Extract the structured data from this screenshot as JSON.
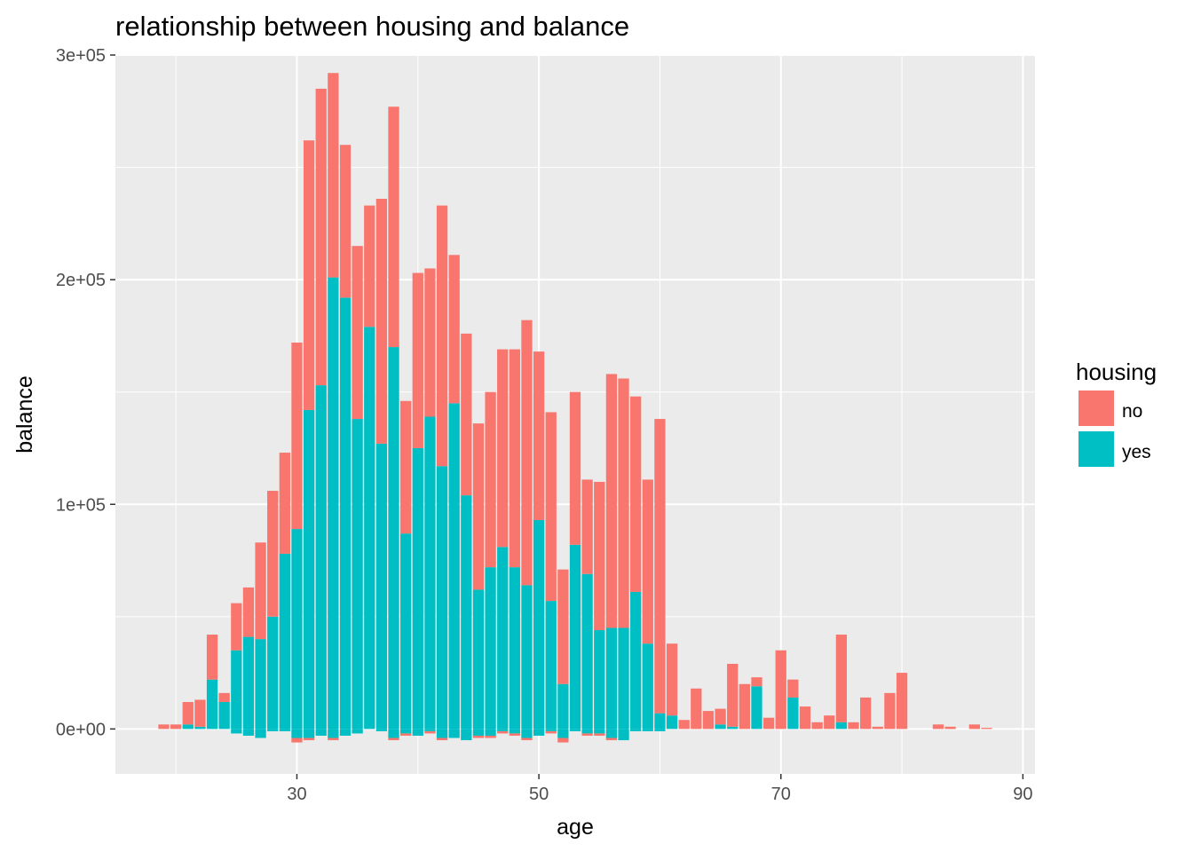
{
  "chart_data": {
    "type": "bar",
    "stacked": true,
    "title": "relationship between housing and balance",
    "xlabel": "age",
    "ylabel": "balance",
    "xlim": [
      15,
      91
    ],
    "ylim": [
      -20000,
      300000
    ],
    "x_ticks": [
      30,
      50,
      70,
      90
    ],
    "x_tick_labels": [
      "30",
      "50",
      "70",
      "90"
    ],
    "y_ticks": [
      0,
      100000,
      200000,
      300000
    ],
    "y_tick_labels": [
      "0e+00",
      "1e+05",
      "2e+05",
      "3e+05"
    ],
    "grid": true,
    "legend": {
      "title": "housing",
      "position": "right",
      "entries": [
        {
          "label": "no",
          "color": "#F8766D"
        },
        {
          "label": "yes",
          "color": "#00BFC4"
        }
      ]
    },
    "x": [
      19,
      20,
      21,
      22,
      23,
      24,
      25,
      26,
      27,
      28,
      29,
      30,
      31,
      32,
      33,
      34,
      35,
      36,
      37,
      38,
      39,
      40,
      41,
      42,
      43,
      44,
      45,
      46,
      47,
      48,
      49,
      50,
      51,
      52,
      53,
      54,
      55,
      56,
      57,
      58,
      59,
      60,
      61,
      62,
      63,
      64,
      65,
      66,
      67,
      68,
      69,
      70,
      71,
      72,
      73,
      74,
      75,
      76,
      77,
      78,
      79,
      80,
      81,
      83,
      84,
      86,
      87
    ],
    "series": [
      {
        "name": "yes",
        "color": "#00BFC4",
        "values": [
          0,
          0,
          2000,
          1000,
          22000,
          12000,
          35000,
          41000,
          40000,
          50000,
          78000,
          89000,
          142000,
          153000,
          201000,
          192000,
          138000,
          179000,
          127000,
          170000,
          87000,
          125000,
          139000,
          117000,
          145000,
          104000,
          62000,
          72000,
          81000,
          72000,
          64000,
          93000,
          57000,
          20000,
          82000,
          69000,
          44000,
          45000,
          45000,
          61000,
          38000,
          7000,
          6000,
          0,
          0,
          0,
          2000,
          1000,
          0,
          19000,
          0,
          0,
          14000,
          0,
          0,
          0,
          3000,
          0,
          0,
          0,
          0,
          0,
          0,
          0,
          0,
          0,
          0
        ]
      },
      {
        "name": "no",
        "color": "#F8766D",
        "values": [
          2000,
          2000,
          10000,
          12000,
          20000,
          4000,
          21000,
          22000,
          43000,
          56000,
          45000,
          83000,
          120000,
          132000,
          91000,
          68000,
          77000,
          54000,
          109000,
          107000,
          59000,
          78000,
          66000,
          116000,
          66000,
          72000,
          74000,
          78000,
          88000,
          97000,
          118000,
          75000,
          84000,
          51000,
          68000,
          42000,
          66000,
          113000,
          111000,
          87000,
          73000,
          131000,
          32000,
          4000,
          18000,
          8000,
          7000,
          28000,
          20000,
          4000,
          5000,
          35000,
          8000,
          10000,
          3000,
          6000,
          39000,
          3000,
          14000,
          1000,
          16000,
          25000,
          0,
          2000,
          1000,
          2000,
          500
        ]
      },
      {
        "name": "yes (negative)",
        "color": "#00BFC4",
        "values": [
          0,
          0,
          0,
          0,
          0,
          0,
          -2000,
          -3000,
          -4000,
          -1000,
          -1000,
          -4000,
          -4000,
          -3000,
          -4000,
          -3000,
          -2000,
          0,
          -1000,
          -4000,
          -2000,
          -3000,
          -1000,
          -4000,
          -4000,
          -5000,
          -3000,
          -3000,
          -1000,
          -2000,
          -4000,
          -3000,
          -1000,
          -4000,
          -1000,
          -2000,
          -2000,
          -4000,
          -5000,
          -1000,
          -1000,
          -1000,
          0,
          0,
          0,
          0,
          0,
          0,
          0,
          0,
          0,
          0,
          0,
          0,
          0,
          0,
          0,
          0,
          0,
          0,
          0,
          0,
          0,
          0,
          0,
          0,
          0
        ]
      },
      {
        "name": "no (negative)",
        "color": "#F8766D",
        "values": [
          0,
          0,
          0,
          0,
          0,
          0,
          0,
          0,
          0,
          0,
          0,
          -2000,
          -1000,
          0,
          -1000,
          0,
          0,
          0,
          0,
          -1000,
          -1000,
          0,
          -1000,
          -1000,
          0,
          0,
          -1000,
          -1000,
          -1000,
          -1000,
          -1000,
          0,
          -1000,
          -2000,
          0,
          -1000,
          -1000,
          -1000,
          0,
          0,
          0,
          0,
          0,
          0,
          0,
          0,
          0,
          0,
          0,
          0,
          0,
          0,
          0,
          0,
          0,
          0,
          0,
          0,
          0,
          0,
          0,
          0,
          0,
          0,
          0,
          0,
          0
        ]
      }
    ]
  }
}
